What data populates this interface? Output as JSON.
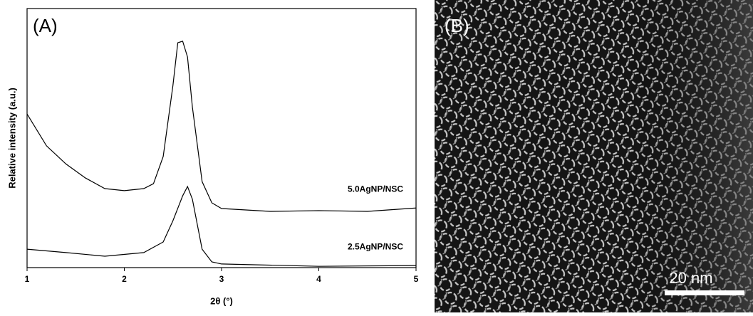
{
  "chart_data": {
    "type": "line",
    "panel_label": "(A)",
    "xlabel": "2θ (°)",
    "ylabel": "Relative intensity (a.u.)",
    "xlim": [
      1,
      5
    ],
    "xticks": [
      1,
      2,
      3,
      4,
      5
    ],
    "ylim": [
      0,
      100
    ],
    "series": [
      {
        "name": "5.0AgNP/NSC",
        "color": "#000000",
        "x": [
          1.0,
          1.2,
          1.4,
          1.6,
          1.8,
          2.0,
          2.2,
          2.3,
          2.4,
          2.5,
          2.55,
          2.6,
          2.65,
          2.7,
          2.8,
          2.9,
          3.0,
          3.5,
          4.0,
          4.5,
          5.0
        ],
        "values": [
          59.3,
          47,
          40,
          34.6,
          30.5,
          29.7,
          30.5,
          32.4,
          42.9,
          70.3,
          86.8,
          87.4,
          81.3,
          62,
          33.2,
          25,
          22.8,
          21.7,
          22,
          21.7,
          23
        ]
      },
      {
        "name": "2.5AgNP/NSC",
        "color": "#000000",
        "x": [
          1.0,
          1.4,
          1.8,
          2.2,
          2.4,
          2.5,
          2.6,
          2.65,
          2.7,
          2.8,
          2.9,
          3.0,
          4.0,
          5.0
        ],
        "values": [
          7.1,
          5.8,
          4.4,
          5.8,
          9.9,
          18.1,
          27.7,
          31.3,
          26.4,
          7.1,
          2.2,
          1.4,
          0.5,
          0.8
        ]
      }
    ]
  },
  "panel_b": {
    "label": "(B)",
    "scale_bar": "20 nm"
  }
}
